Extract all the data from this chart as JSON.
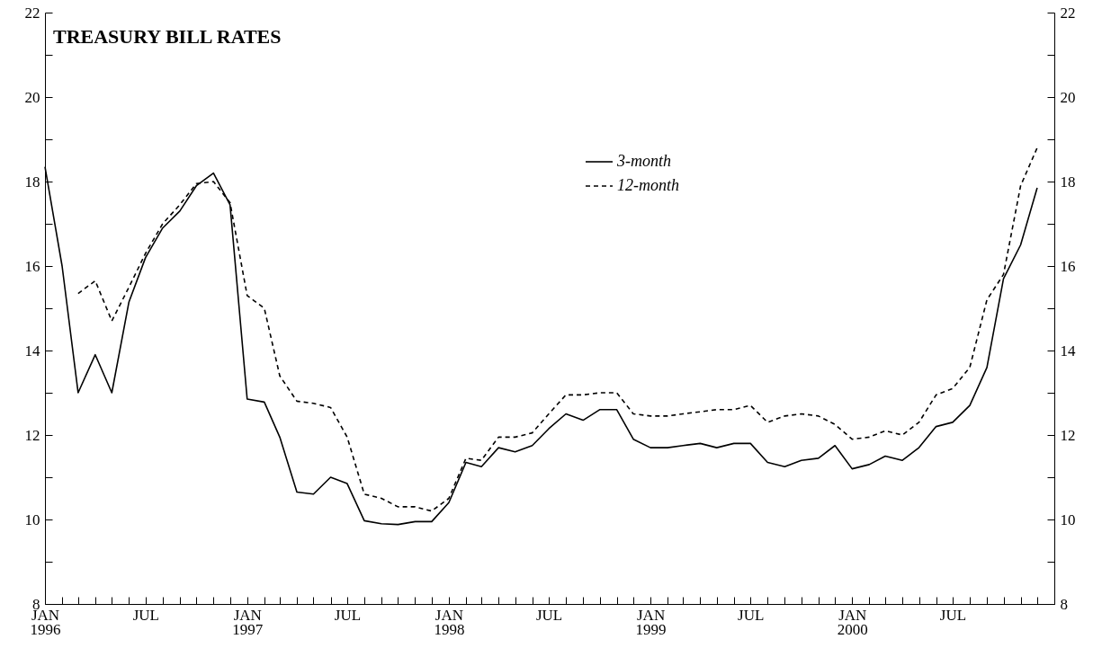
{
  "chart_data": {
    "type": "line",
    "title": "TREASURY BILL RATES",
    "x": [
      "1996-01",
      "1996-02",
      "1996-03",
      "1996-04",
      "1996-05",
      "1996-06",
      "1996-07",
      "1996-08",
      "1996-09",
      "1996-10",
      "1996-11",
      "1996-12",
      "1997-01",
      "1997-02",
      "1997-03",
      "1997-04",
      "1997-05",
      "1997-06",
      "1997-07",
      "1997-08",
      "1997-09",
      "1997-10",
      "1997-11",
      "1997-12",
      "1998-01",
      "1998-02",
      "1998-03",
      "1998-04",
      "1998-05",
      "1998-06",
      "1998-07",
      "1998-08",
      "1998-09",
      "1998-10",
      "1998-11",
      "1998-12",
      "1999-01",
      "1999-02",
      "1999-03",
      "1999-04",
      "1999-05",
      "1999-06",
      "1999-07",
      "1999-08",
      "1999-09",
      "1999-10",
      "1999-11",
      "1999-12",
      "2000-01",
      "2000-02",
      "2000-03",
      "2000-04",
      "2000-05",
      "2000-06",
      "2000-07",
      "2000-08",
      "2000-09",
      "2000-10",
      "2000-11",
      "2000-12"
    ],
    "series": [
      {
        "name": "3-month",
        "color": "#000000",
        "line_style": "solid",
        "values": [
          18.35,
          16.0,
          13.0,
          13.9,
          13.0,
          15.15,
          16.2,
          16.9,
          17.3,
          17.9,
          18.2,
          17.45,
          12.85,
          12.78,
          11.95,
          10.65,
          10.6,
          11.0,
          10.85,
          9.97,
          9.9,
          9.88,
          9.95,
          9.95,
          10.4,
          11.35,
          11.25,
          11.7,
          11.6,
          11.75,
          12.15,
          12.5,
          12.35,
          12.6,
          12.6,
          11.9,
          11.7,
          11.7,
          11.75,
          11.8,
          11.7,
          11.8,
          11.8,
          11.35,
          11.25,
          11.4,
          11.45,
          11.75,
          11.2,
          11.3,
          11.5,
          11.4,
          11.7,
          12.2,
          12.3,
          12.7,
          13.6,
          15.7,
          16.5,
          17.85
        ]
      },
      {
        "name": "12-month",
        "color": "#000000",
        "line_style": "dashed",
        "values": [
          null,
          null,
          15.35,
          15.65,
          14.7,
          15.5,
          16.3,
          17.0,
          17.45,
          17.95,
          18.0,
          17.5,
          15.3,
          15.0,
          13.4,
          12.8,
          12.75,
          12.65,
          11.95,
          10.6,
          10.5,
          10.3,
          10.3,
          10.2,
          10.5,
          11.45,
          11.4,
          11.95,
          11.95,
          12.05,
          12.5,
          12.95,
          12.95,
          13.0,
          13.0,
          12.5,
          12.45,
          12.45,
          12.5,
          12.55,
          12.6,
          12.6,
          12.7,
          12.3,
          12.45,
          12.5,
          12.45,
          12.25,
          11.9,
          11.95,
          12.1,
          12.0,
          12.3,
          12.95,
          13.1,
          13.6,
          15.2,
          15.8,
          17.9,
          18.8
        ]
      }
    ],
    "xlim": [
      "1996-01",
      "2001-01"
    ],
    "xticks": [
      {
        "value": "1996-01",
        "label": "JAN\n1996"
      },
      {
        "value": "1996-02",
        "label": null
      },
      {
        "value": "1996-03",
        "label": null
      },
      {
        "value": "1996-04",
        "label": null
      },
      {
        "value": "1996-05",
        "label": null
      },
      {
        "value": "1996-06",
        "label": null
      },
      {
        "value": "1996-07",
        "label": "JUL"
      },
      {
        "value": "1996-08",
        "label": null
      },
      {
        "value": "1996-09",
        "label": null
      },
      {
        "value": "1996-10",
        "label": null
      },
      {
        "value": "1996-11",
        "label": null
      },
      {
        "value": "1996-12",
        "label": null
      },
      {
        "value": "1997-01",
        "label": "JAN\n1997"
      },
      {
        "value": "1997-02",
        "label": null
      },
      {
        "value": "1997-03",
        "label": null
      },
      {
        "value": "1997-04",
        "label": null
      },
      {
        "value": "1997-05",
        "label": null
      },
      {
        "value": "1997-06",
        "label": null
      },
      {
        "value": "1997-07",
        "label": "JUL"
      },
      {
        "value": "1997-08",
        "label": null
      },
      {
        "value": "1997-09",
        "label": null
      },
      {
        "value": "1997-10",
        "label": null
      },
      {
        "value": "1997-11",
        "label": null
      },
      {
        "value": "1997-12",
        "label": null
      },
      {
        "value": "1998-01",
        "label": "JAN\n1998"
      },
      {
        "value": "1998-02",
        "label": null
      },
      {
        "value": "1998-03",
        "label": null
      },
      {
        "value": "1998-04",
        "label": null
      },
      {
        "value": "1998-05",
        "label": null
      },
      {
        "value": "1998-06",
        "label": null
      },
      {
        "value": "1998-07",
        "label": "JUL"
      },
      {
        "value": "1998-08",
        "label": null
      },
      {
        "value": "1998-09",
        "label": null
      },
      {
        "value": "1998-10",
        "label": null
      },
      {
        "value": "1998-11",
        "label": null
      },
      {
        "value": "1998-12",
        "label": null
      },
      {
        "value": "1999-01",
        "label": "JAN\n1999"
      },
      {
        "value": "1999-02",
        "label": null
      },
      {
        "value": "1999-03",
        "label": null
      },
      {
        "value": "1999-04",
        "label": null
      },
      {
        "value": "1999-05",
        "label": null
      },
      {
        "value": "1999-06",
        "label": null
      },
      {
        "value": "1999-07",
        "label": "JUL"
      },
      {
        "value": "1999-08",
        "label": null
      },
      {
        "value": "1999-09",
        "label": null
      },
      {
        "value": "1999-10",
        "label": null
      },
      {
        "value": "1999-11",
        "label": null
      },
      {
        "value": "1999-12",
        "label": null
      },
      {
        "value": "2000-01",
        "label": "JAN\n2000"
      },
      {
        "value": "2000-02",
        "label": null
      },
      {
        "value": "2000-03",
        "label": null
      },
      {
        "value": "2000-04",
        "label": null
      },
      {
        "value": "2000-05",
        "label": null
      },
      {
        "value": "2000-06",
        "label": null
      },
      {
        "value": "2000-07",
        "label": "JUL"
      },
      {
        "value": "2000-08",
        "label": null
      },
      {
        "value": "2000-09",
        "label": null
      },
      {
        "value": "2000-10",
        "label": null
      },
      {
        "value": "2000-11",
        "label": null
      },
      {
        "value": "2000-12",
        "label": null
      },
      {
        "value": "2001-01",
        "label": null
      }
    ],
    "ylim": [
      8,
      22
    ],
    "yticks": [
      8,
      {
        "value": 9,
        "label": null
      },
      10,
      {
        "value": 11,
        "label": null
      },
      12,
      {
        "value": 13,
        "label": null
      },
      14,
      {
        "value": 15,
        "label": null
      },
      16,
      {
        "value": 17,
        "label": null
      },
      18,
      {
        "value": 19,
        "label": null
      },
      20,
      {
        "value": 21,
        "label": null
      },
      22
    ],
    "y2lim": [
      8,
      22
    ],
    "y2ticks": [
      8,
      {
        "value": 9,
        "label": null
      },
      10,
      {
        "value": 11,
        "label": null
      },
      12,
      {
        "value": 13,
        "label": null
      },
      14,
      {
        "value": 15,
        "label": null
      },
      16,
      {
        "value": 17,
        "label": null
      },
      18,
      {
        "value": 19,
        "label": null
      },
      20,
      {
        "value": 21,
        "label": null
      },
      22
    ],
    "legend": "top",
    "grid": false
  }
}
